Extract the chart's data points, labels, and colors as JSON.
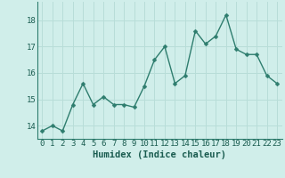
{
  "x": [
    0,
    1,
    2,
    3,
    4,
    5,
    6,
    7,
    8,
    9,
    10,
    11,
    12,
    13,
    14,
    15,
    16,
    17,
    18,
    19,
    20,
    21,
    22,
    23
  ],
  "y": [
    13.8,
    14.0,
    13.8,
    14.8,
    15.6,
    14.8,
    15.1,
    14.8,
    14.8,
    14.7,
    15.5,
    16.5,
    17.0,
    15.6,
    15.9,
    17.6,
    17.1,
    17.4,
    18.2,
    16.9,
    16.7,
    16.7,
    15.9,
    15.6
  ],
  "xlabel": "Humidex (Indice chaleur)",
  "ylim": [
    13.5,
    18.7
  ],
  "xlim": [
    -0.5,
    23.5
  ],
  "yticks": [
    14,
    15,
    16,
    17,
    18
  ],
  "xticks": [
    0,
    1,
    2,
    3,
    4,
    5,
    6,
    7,
    8,
    9,
    10,
    11,
    12,
    13,
    14,
    15,
    16,
    17,
    18,
    19,
    20,
    21,
    22,
    23
  ],
  "line_color": "#2e7d6e",
  "marker_color": "#2e7d6e",
  "bg_color": "#d0eeea",
  "grid_color": "#b8ddd8",
  "xlabel_fontsize": 7.5,
  "tick_fontsize": 6.5,
  "line_width": 1.0,
  "marker_size": 2.5
}
